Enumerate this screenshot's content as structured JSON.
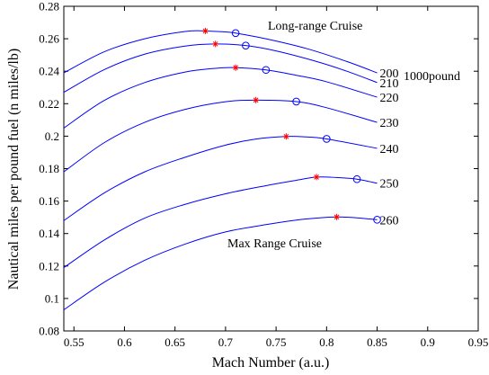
{
  "chart_data": {
    "type": "line",
    "title": "",
    "xlabel": "Mach Number (a.u.)",
    "ylabel": "Nautical miles per pound fuel (n miles/lb)",
    "xlim": [
      0.54,
      0.95
    ],
    "ylim": [
      0.08,
      0.28
    ],
    "xticks": [
      "0.55",
      "0.6",
      "0.65",
      "0.7",
      "0.75",
      "0.8",
      "0.85",
      "0.9",
      "0.95"
    ],
    "yticks": [
      "0.08",
      "0.1",
      "0.12",
      "0.14",
      "0.16",
      "0.18",
      "0.2",
      "0.22",
      "0.24",
      "0.26",
      "0.28"
    ],
    "grid": false,
    "line_color": "#0000ff",
    "max_range_marker_color": "#ff0000",
    "long_range_marker_color": "#0000ff",
    "annotations": {
      "top_label": "Long-range Cruise",
      "bottom_label": "Max Range Cruise",
      "unit_label": "1000pound"
    },
    "series": [
      {
        "name": "200",
        "x": [
          0.54,
          0.58,
          0.62,
          0.66,
          0.68,
          0.7,
          0.71,
          0.74,
          0.78,
          0.82,
          0.85
        ],
        "y": [
          0.239,
          0.252,
          0.26,
          0.2645,
          0.2648,
          0.2642,
          0.2635,
          0.26,
          0.254,
          0.246,
          0.239
        ],
        "max_range": [
          0.68,
          0.2648
        ],
        "long_range": [
          0.71,
          0.2635
        ]
      },
      {
        "name": "210",
        "x": [
          0.54,
          0.58,
          0.62,
          0.66,
          0.69,
          0.72,
          0.75,
          0.79,
          0.82,
          0.85
        ],
        "y": [
          0.227,
          0.241,
          0.2505,
          0.2555,
          0.2568,
          0.2558,
          0.2525,
          0.246,
          0.24,
          0.233
        ],
        "max_range": [
          0.69,
          0.2568
        ],
        "long_range": [
          0.72,
          0.2558
        ]
      },
      {
        "name": "220",
        "x": [
          0.54,
          0.58,
          0.62,
          0.66,
          0.69,
          0.71,
          0.74,
          0.77,
          0.8,
          0.85
        ],
        "y": [
          0.205,
          0.222,
          0.233,
          0.2395,
          0.2418,
          0.2422,
          0.2408,
          0.2375,
          0.2335,
          0.224
        ],
        "max_range": [
          0.71,
          0.2422
        ],
        "long_range": [
          0.74,
          0.2408
        ]
      },
      {
        "name": "230",
        "x": [
          0.54,
          0.58,
          0.62,
          0.66,
          0.7,
          0.73,
          0.77,
          0.8,
          0.85
        ],
        "y": [
          0.178,
          0.196,
          0.2085,
          0.2165,
          0.2212,
          0.2222,
          0.2213,
          0.2175,
          0.2085
        ],
        "max_range": [
          0.73,
          0.2222
        ],
        "long_range": [
          0.77,
          0.2213
        ]
      },
      {
        "name": "240",
        "x": [
          0.54,
          0.58,
          0.62,
          0.66,
          0.7,
          0.73,
          0.76,
          0.78,
          0.8,
          0.85
        ],
        "y": [
          0.148,
          0.165,
          0.178,
          0.187,
          0.1945,
          0.1982,
          0.1998,
          0.1995,
          0.1983,
          0.1925
        ],
        "max_range": [
          0.76,
          0.1998
        ],
        "long_range": [
          0.8,
          0.1983
        ]
      },
      {
        "name": "250",
        "x": [
          0.54,
          0.58,
          0.62,
          0.66,
          0.7,
          0.74,
          0.77,
          0.79,
          0.81,
          0.83,
          0.85
        ],
        "y": [
          0.119,
          0.136,
          0.1495,
          0.158,
          0.1645,
          0.1695,
          0.1728,
          0.1748,
          0.1745,
          0.1735,
          0.171
        ],
        "max_range": [
          0.79,
          0.1748
        ],
        "long_range": [
          0.83,
          0.1735
        ]
      },
      {
        "name": "260",
        "x": [
          0.54,
          0.58,
          0.62,
          0.66,
          0.7,
          0.74,
          0.77,
          0.79,
          0.81,
          0.83,
          0.85
        ],
        "y": [
          0.093,
          0.11,
          0.1235,
          0.1335,
          0.141,
          0.1455,
          0.1483,
          0.1495,
          0.1502,
          0.1497,
          0.1485
        ],
        "max_range": [
          0.81,
          0.1502
        ],
        "long_range": [
          0.85,
          0.1485
        ]
      }
    ]
  }
}
